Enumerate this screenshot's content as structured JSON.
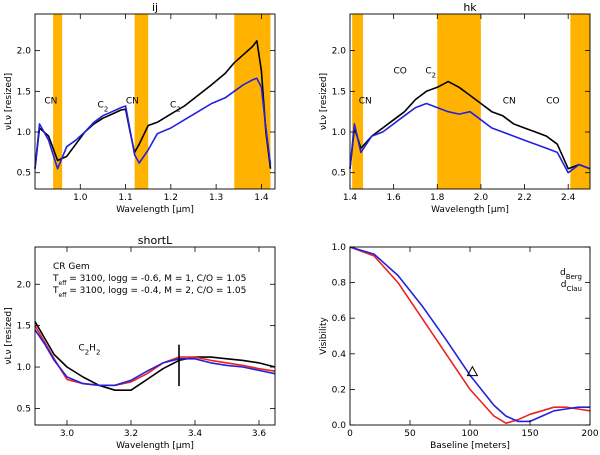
{
  "chart_data": [
    {
      "id": "ij",
      "type": "line",
      "title": "ij",
      "xlabel": "Wavelength [μm]",
      "ylabel": "νLν [resized]",
      "xlim": [
        0.9,
        1.43
      ],
      "ylim": [
        0.3,
        2.45
      ],
      "xticks": [
        "1.0",
        "1.1",
        "1.2",
        "1.3",
        "1.4"
      ],
      "yticks": [
        "0.5",
        "1.0",
        "1.5",
        "2.0"
      ],
      "xtick_values": [
        1.0,
        1.1,
        1.2,
        1.3,
        1.4
      ],
      "ytick_values": [
        0.5,
        1.0,
        1.5,
        2.0
      ],
      "bands": [
        [
          0.94,
          0.96
        ],
        [
          1.12,
          1.15
        ],
        [
          1.34,
          1.42
        ]
      ],
      "annotations": [
        {
          "text": "CN",
          "x": 0.935,
          "y": 1.35
        },
        {
          "text": "C2",
          "x": 1.05,
          "y": 1.3
        },
        {
          "text": "CN",
          "x": 1.115,
          "y": 1.35
        },
        {
          "text": "C2",
          "x": 1.21,
          "y": 1.3
        }
      ],
      "series": [
        {
          "name": "observed",
          "color": "#000000",
          "x": [
            0.9,
            0.91,
            0.93,
            0.95,
            0.97,
            0.99,
            1.01,
            1.03,
            1.05,
            1.07,
            1.09,
            1.1,
            1.11,
            1.12,
            1.13,
            1.15,
            1.17,
            1.2,
            1.23,
            1.26,
            1.29,
            1.32,
            1.34,
            1.36,
            1.38,
            1.39,
            1.4,
            1.41,
            1.42
          ],
          "y": [
            0.55,
            1.05,
            0.95,
            0.65,
            0.7,
            0.85,
            1.0,
            1.1,
            1.17,
            1.22,
            1.27,
            1.28,
            1.0,
            0.75,
            0.85,
            1.08,
            1.12,
            1.22,
            1.32,
            1.45,
            1.58,
            1.72,
            1.85,
            1.95,
            2.05,
            2.12,
            1.75,
            1.0,
            0.55
          ]
        },
        {
          "name": "model",
          "color": "#2222dd",
          "x": [
            0.9,
            0.91,
            0.93,
            0.95,
            0.97,
            0.99,
            1.01,
            1.03,
            1.05,
            1.07,
            1.09,
            1.1,
            1.11,
            1.12,
            1.13,
            1.15,
            1.17,
            1.2,
            1.23,
            1.26,
            1.29,
            1.32,
            1.34,
            1.36,
            1.38,
            1.39,
            1.4,
            1.41,
            1.42
          ],
          "y": [
            0.55,
            1.1,
            0.9,
            0.55,
            0.82,
            0.9,
            1.0,
            1.12,
            1.2,
            1.25,
            1.3,
            1.32,
            1.02,
            0.72,
            0.62,
            0.78,
            0.98,
            1.05,
            1.15,
            1.25,
            1.35,
            1.42,
            1.5,
            1.58,
            1.64,
            1.66,
            1.55,
            1.05,
            0.6
          ]
        }
      ]
    },
    {
      "id": "hk",
      "type": "line",
      "title": "hk",
      "xlabel": "Wavelength [μm]",
      "ylabel": "νLν [resized]",
      "xlim": [
        1.4,
        2.5
      ],
      "ylim": [
        0.3,
        2.45
      ],
      "xticks": [
        "1.4",
        "1.6",
        "1.8",
        "2.0",
        "2.2",
        "2.4"
      ],
      "yticks": [
        "0.5",
        "1.0",
        "1.5",
        "2.0"
      ],
      "xtick_values": [
        1.4,
        1.6,
        1.8,
        2.0,
        2.2,
        2.4
      ],
      "ytick_values": [
        0.5,
        1.0,
        1.5,
        2.0
      ],
      "bands": [
        [
          1.41,
          1.46
        ],
        [
          1.8,
          2.0
        ],
        [
          2.41,
          2.5
        ]
      ],
      "annotations": [
        {
          "text": "CN",
          "x": 1.47,
          "y": 1.35
        },
        {
          "text": "CO",
          "x": 1.63,
          "y": 1.72
        },
        {
          "text": "C2",
          "x": 1.77,
          "y": 1.72
        },
        {
          "text": "CN",
          "x": 2.13,
          "y": 1.35
        },
        {
          "text": "CO",
          "x": 2.33,
          "y": 1.35
        }
      ],
      "series": [
        {
          "name": "observed",
          "color": "#000000",
          "x": [
            1.4,
            1.42,
            1.45,
            1.5,
            1.55,
            1.6,
            1.65,
            1.7,
            1.75,
            1.8,
            1.85,
            1.9,
            1.95,
            2.0,
            2.05,
            2.1,
            2.15,
            2.2,
            2.25,
            2.3,
            2.35,
            2.4,
            2.45,
            2.5
          ],
          "y": [
            0.55,
            1.05,
            0.8,
            0.95,
            1.05,
            1.15,
            1.25,
            1.4,
            1.5,
            1.55,
            1.62,
            1.55,
            1.45,
            1.35,
            1.25,
            1.2,
            1.1,
            1.05,
            1.0,
            0.95,
            0.85,
            0.55,
            0.6,
            0.55
          ]
        },
        {
          "name": "model",
          "color": "#2222dd",
          "x": [
            1.4,
            1.42,
            1.45,
            1.5,
            1.55,
            1.6,
            1.65,
            1.7,
            1.75,
            1.8,
            1.85,
            1.9,
            1.95,
            2.0,
            2.05,
            2.1,
            2.15,
            2.2,
            2.25,
            2.3,
            2.35,
            2.4,
            2.45,
            2.5
          ],
          "y": [
            0.55,
            1.1,
            0.75,
            0.95,
            1.0,
            1.1,
            1.2,
            1.3,
            1.35,
            1.3,
            1.25,
            1.22,
            1.25,
            1.15,
            1.05,
            1.0,
            0.95,
            0.9,
            0.85,
            0.8,
            0.75,
            0.5,
            0.6,
            0.55
          ]
        }
      ]
    },
    {
      "id": "shortL",
      "type": "line",
      "title": "shortL",
      "xlabel": "Wavelength [μm]",
      "ylabel": "νLν [resized]",
      "xlim": [
        2.9,
        3.65
      ],
      "ylim": [
        0.3,
        2.45
      ],
      "xticks": [
        "3.0",
        "3.2",
        "3.4",
        "3.6"
      ],
      "yticks": [
        "0.5",
        "1.0",
        "1.5",
        "2.0"
      ],
      "xtick_values": [
        3.0,
        3.2,
        3.4,
        3.6
      ],
      "ytick_values": [
        0.5,
        1.0,
        1.5,
        2.0
      ],
      "legend": [
        {
          "text": "CR Gem",
          "color": "#000000"
        },
        {
          "text": "Teff = 3100, logg = -0.6, M = 1, C/O = 1.05",
          "color": "#ee2222"
        },
        {
          "text": "Teff = 3100, logg = -0.4, M = 2, C/O = 1.05",
          "color": "#2222dd"
        }
      ],
      "annotations": [
        {
          "text": "C2H2",
          "x": 3.07,
          "y": 1.2
        }
      ],
      "marker_x": 3.35,
      "marker_y": [
        0.77,
        1.27
      ],
      "series": [
        {
          "name": "CR Gem",
          "color": "#000000",
          "x": [
            2.9,
            2.93,
            2.96,
            3.0,
            3.05,
            3.1,
            3.15,
            3.2,
            3.25,
            3.3,
            3.35,
            3.4,
            3.45,
            3.5,
            3.55,
            3.6,
            3.65
          ],
          "y": [
            1.55,
            1.35,
            1.15,
            1.0,
            0.88,
            0.78,
            0.72,
            0.72,
            0.85,
            0.98,
            1.08,
            1.12,
            1.12,
            1.1,
            1.08,
            1.05,
            1.0
          ]
        },
        {
          "name": "Teff = 3100, logg = -0.6, M = 1, C/O = 1.05",
          "color": "#ee2222",
          "x": [
            2.9,
            2.93,
            2.96,
            3.0,
            3.05,
            3.1,
            3.15,
            3.2,
            3.25,
            3.3,
            3.35,
            3.4,
            3.45,
            3.5,
            3.55,
            3.6,
            3.65
          ],
          "y": [
            1.5,
            1.3,
            1.1,
            0.85,
            0.8,
            0.78,
            0.78,
            0.82,
            0.92,
            1.05,
            1.12,
            1.12,
            1.08,
            1.05,
            1.02,
            0.98,
            0.95
          ]
        },
        {
          "name": "Teff = 3100, logg = -0.4, M = 2, C/O = 1.05",
          "color": "#2222dd",
          "x": [
            2.9,
            2.93,
            2.96,
            3.0,
            3.05,
            3.1,
            3.15,
            3.2,
            3.25,
            3.3,
            3.35,
            3.4,
            3.45,
            3.5,
            3.55,
            3.6,
            3.65
          ],
          "y": [
            1.45,
            1.28,
            1.08,
            0.88,
            0.8,
            0.78,
            0.78,
            0.84,
            0.95,
            1.05,
            1.1,
            1.1,
            1.05,
            1.02,
            1.0,
            0.96,
            0.92
          ]
        }
      ]
    },
    {
      "id": "visibility",
      "type": "line",
      "title": "",
      "xlabel": "Baseline [meters]",
      "ylabel": "Visibility",
      "xlim": [
        0,
        200
      ],
      "ylim": [
        0,
        1.0
      ],
      "xticks": [
        "0",
        "50",
        "100",
        "150",
        "200"
      ],
      "yticks": [
        "0.0",
        "0.2",
        "0.4",
        "0.6",
        "0.8",
        "1.0"
      ],
      "xtick_values": [
        0,
        50,
        100,
        150,
        200
      ],
      "ytick_values": [
        0.0,
        0.2,
        0.4,
        0.6,
        0.8,
        1.0
      ],
      "legend": [
        {
          "text": "dBerg",
          "base": "d",
          "sub": "Berg",
          "color": "#ee2222"
        },
        {
          "text": "dClau",
          "base": "d",
          "sub": "Clau",
          "color": "#2222dd"
        }
      ],
      "point": {
        "x": 102,
        "y": 0.3,
        "marker": "triangle"
      },
      "series": [
        {
          "name": "dBerg",
          "color": "#ee2222",
          "x": [
            0,
            20,
            40,
            60,
            80,
            100,
            120,
            130,
            140,
            150,
            160,
            170,
            180,
            190,
            200
          ],
          "y": [
            1.0,
            0.95,
            0.8,
            0.6,
            0.4,
            0.2,
            0.05,
            0.01,
            0.03,
            0.06,
            0.08,
            0.1,
            0.1,
            0.09,
            0.08
          ]
        },
        {
          "name": "dClau",
          "color": "#2222dd",
          "x": [
            0,
            20,
            40,
            60,
            80,
            100,
            120,
            130,
            140,
            150,
            160,
            170,
            180,
            190,
            200
          ],
          "y": [
            1.0,
            0.96,
            0.84,
            0.67,
            0.48,
            0.28,
            0.11,
            0.05,
            0.02,
            0.02,
            0.05,
            0.08,
            0.09,
            0.1,
            0.1
          ]
        }
      ]
    }
  ]
}
